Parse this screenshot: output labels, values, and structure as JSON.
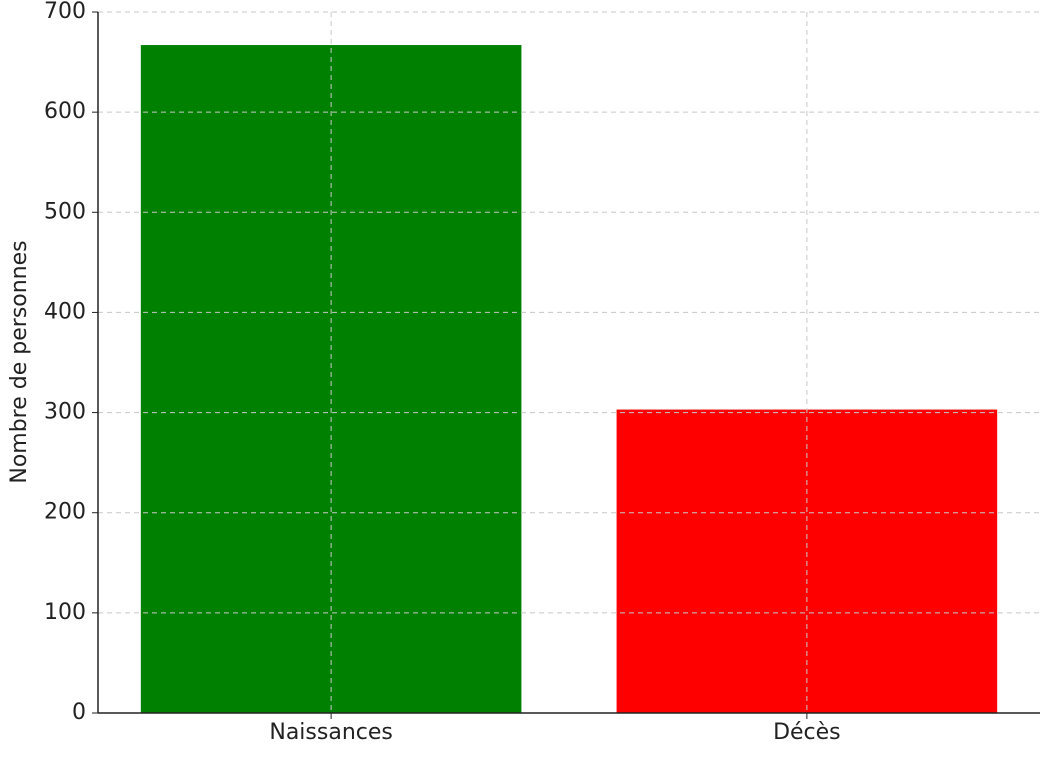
{
  "chart_data": {
    "type": "bar",
    "y_label": "Nombre de personnes",
    "categories": [
      "Naissances",
      "Décès"
    ],
    "values": [
      667,
      303
    ],
    "colors": [
      "#008000",
      "#ff0000"
    ],
    "ylim": [
      0,
      700
    ],
    "yticks": [
      0,
      100,
      200,
      300,
      400,
      500,
      600,
      700
    ],
    "grid": true
  }
}
